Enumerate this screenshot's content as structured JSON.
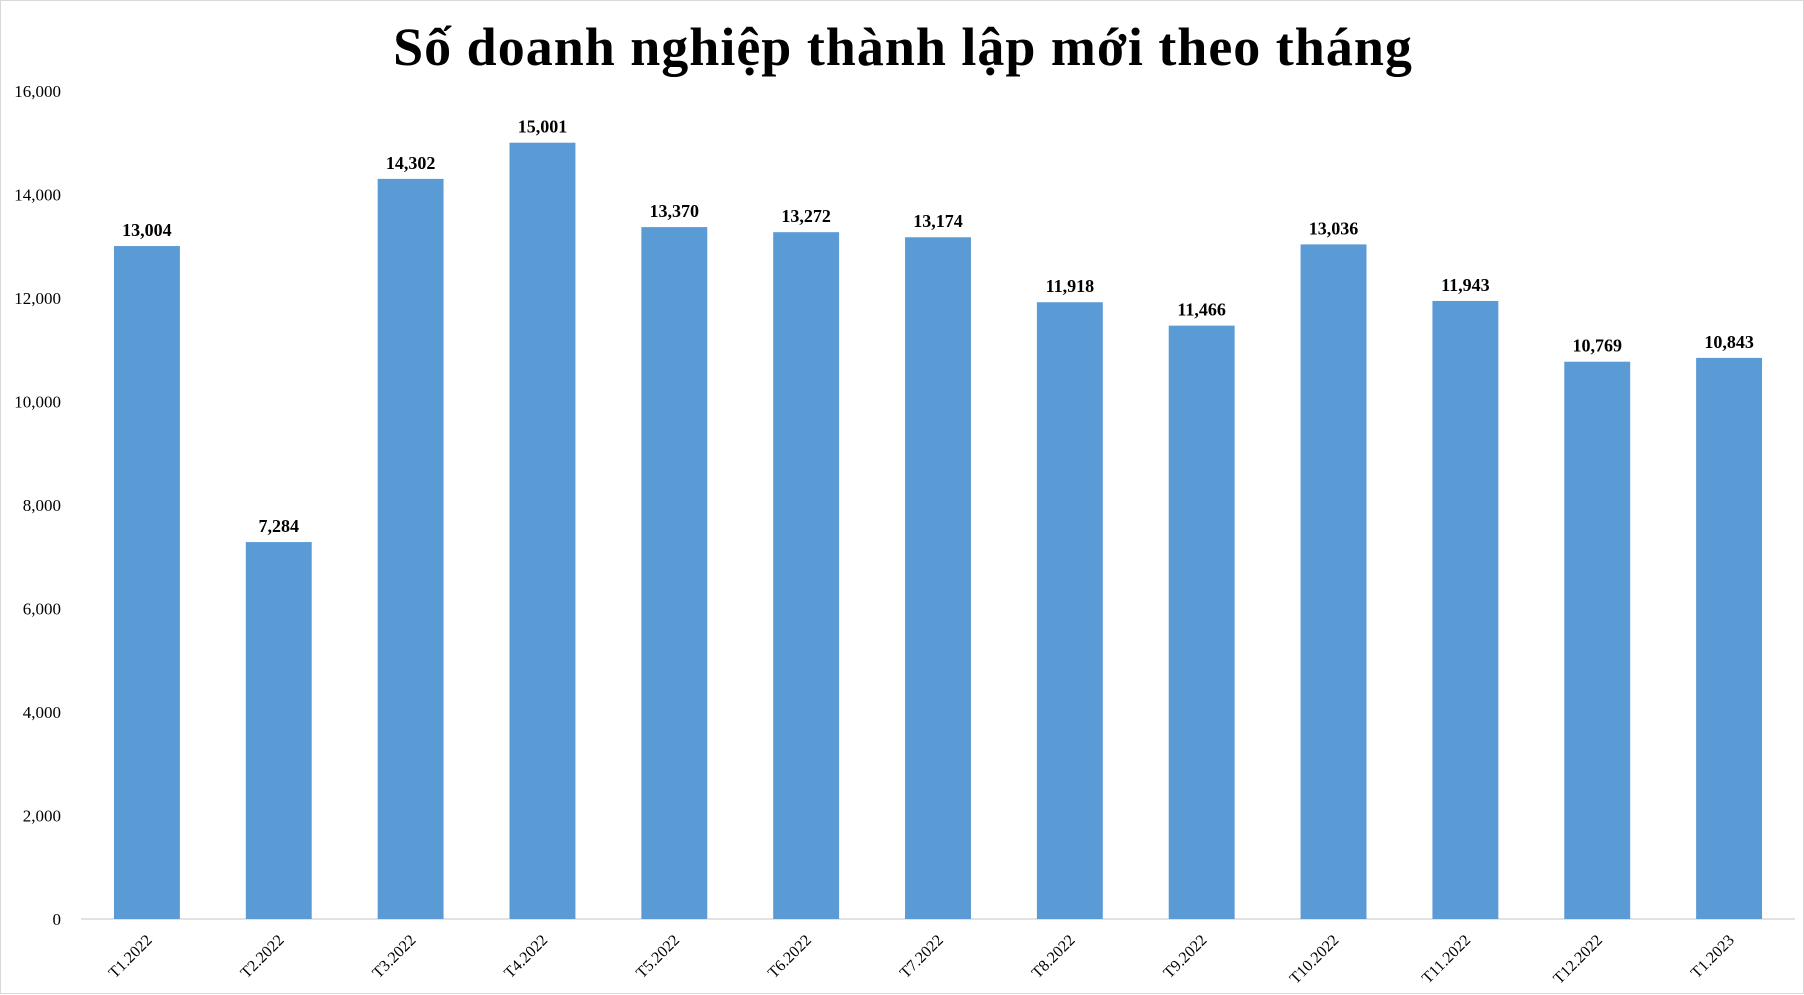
{
  "chart_data": {
    "type": "bar",
    "title": "Số doanh nghiệp thành lập mới theo tháng",
    "xlabel": "",
    "ylabel": "",
    "categories": [
      "T1.2022",
      "T2.2022",
      "T3.2022",
      "T4.2022",
      "T5.2022",
      "T6.2022",
      "T7.2022",
      "T8.2022",
      "T9.2022",
      "T10.2022",
      "T11.2022",
      "T12.2022",
      "T1.2023"
    ],
    "values": [
      13004,
      7284,
      14302,
      15001,
      13370,
      13272,
      13174,
      11918,
      11466,
      13036,
      11943,
      10769,
      10843
    ],
    "value_labels": [
      "13,004",
      "7,284",
      "14,302",
      "15,001",
      "13,370",
      "13,272",
      "13,174",
      "11,918",
      "11,466",
      "13,036",
      "11,943",
      "10,769",
      "10,843"
    ],
    "ylim": [
      0,
      16000
    ],
    "yticks": [
      0,
      2000,
      4000,
      6000,
      8000,
      10000,
      12000,
      14000,
      16000
    ],
    "ytick_labels": [
      "0",
      "2,000",
      "4,000",
      "6,000",
      "8,000",
      "10,000",
      "12,000",
      "14,000",
      "16,000"
    ],
    "grid": false,
    "legend": "none",
    "bar_color": "#5B9BD5"
  }
}
